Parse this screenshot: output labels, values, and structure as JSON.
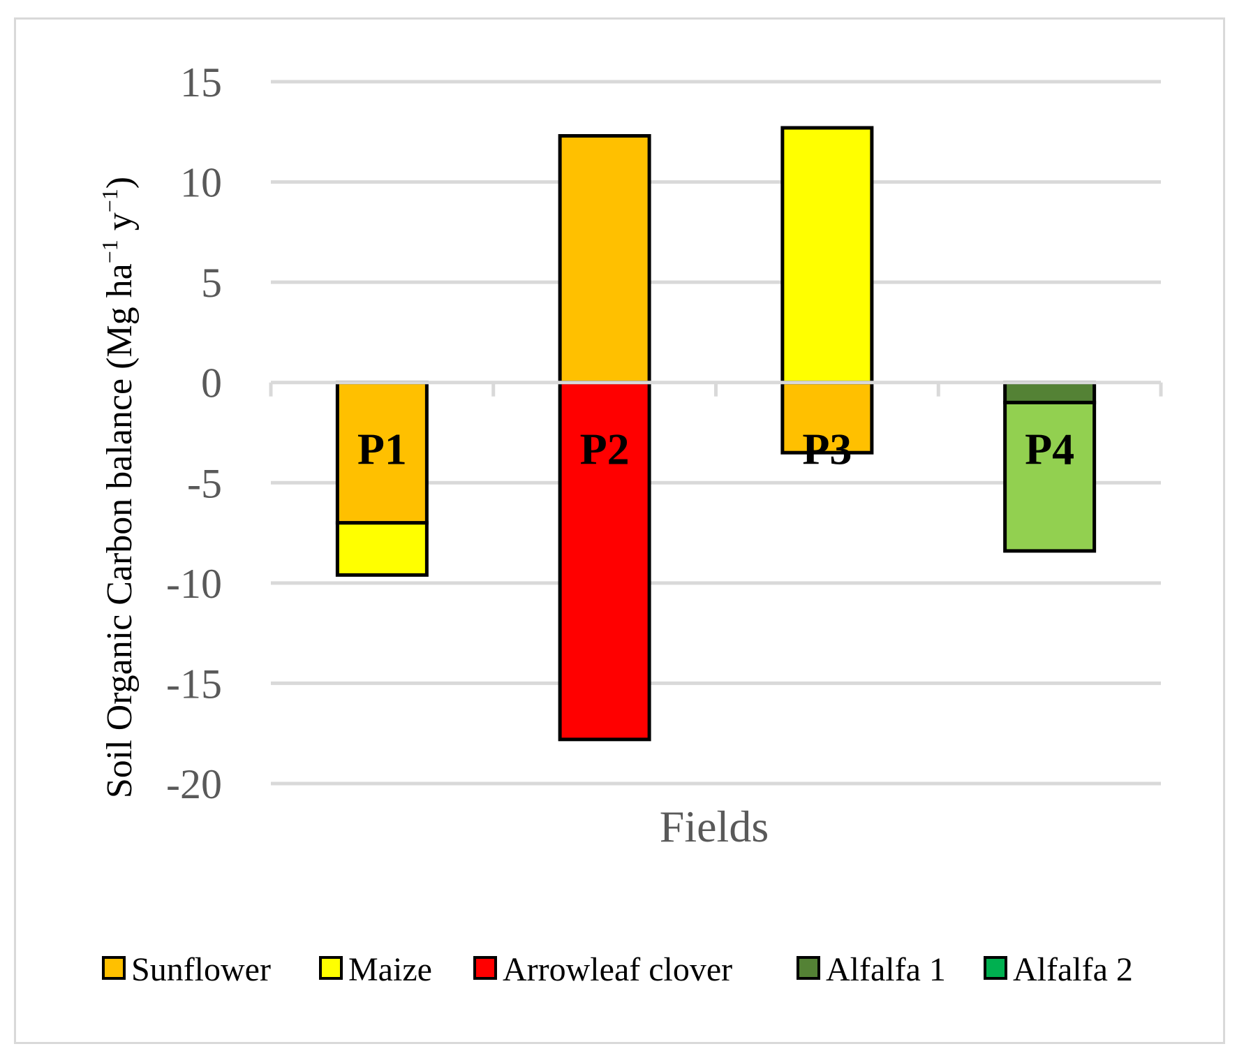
{
  "chart_data": {
    "type": "bar",
    "stacked": true,
    "categories": [
      "P1",
      "P2",
      "P3",
      "P4"
    ],
    "title": "",
    "xlabel": "Fields",
    "ylabel_main": "Soil Organic Carbon balance (Mg ha",
    "ylabel_sup1": "−1",
    "ylabel_mid": " y",
    "ylabel_sup2": "−1",
    "ylabel_end": ")",
    "ylim": [
      -20,
      15
    ],
    "yticks": [
      15,
      10,
      5,
      0,
      -5,
      -10,
      -15,
      -20
    ],
    "grid": true,
    "legend_position": "bottom",
    "series": [
      {
        "name": "Sunflower",
        "color": "#FFC000",
        "values": [
          -7,
          12.3,
          -3.5,
          0
        ]
      },
      {
        "name": "Maize",
        "color": "#FFFF00",
        "values": [
          -2.6,
          0,
          12.7,
          0
        ]
      },
      {
        "name": "Arrowleaf clover",
        "color": "#FF0000",
        "values": [
          0,
          -17.8,
          0,
          0
        ]
      },
      {
        "name": "Alfalfa 1",
        "color": "#548235",
        "values": [
          0,
          0,
          0,
          -1
        ]
      },
      {
        "name": "Alfalfa 2",
        "color": "#00B050",
        "values": [
          0,
          0,
          0,
          0
        ]
      }
    ],
    "p4_extra_segment": {
      "color": "#92D050",
      "value": -7.4
    }
  }
}
